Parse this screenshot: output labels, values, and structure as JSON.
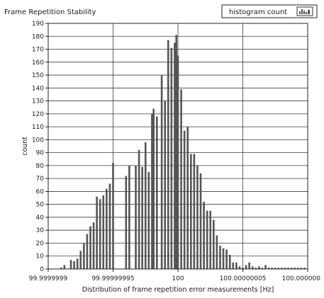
{
  "chart_data": {
    "type": "bar",
    "title": "Frame Repetition Stability",
    "xlabel": "Distribution of frame repetition error measurements [Hz]",
    "ylabel": "count",
    "ylim": [
      0,
      190
    ],
    "yticks": [
      0,
      10,
      20,
      30,
      40,
      50,
      60,
      70,
      80,
      90,
      100,
      110,
      120,
      130,
      140,
      150,
      160,
      170,
      180,
      190
    ],
    "xlim": [
      99.9999999,
      100.0000001
    ],
    "xtick_labels": [
      "99.9999999",
      "99.99999995",
      "100",
      "100.00000005",
      "100.000000"
    ],
    "grid": true,
    "legend_position": "top-right",
    "series": [
      {
        "name": "histogram count",
        "x": [
          99.99999991,
          99.9999999125,
          99.9999999175,
          99.99999992,
          99.9999999225,
          99.999999925,
          99.9999999275,
          99.99999993,
          99.9999999325,
          99.999999935,
          99.9999999375,
          99.99999994,
          99.9999999425,
          99.999999945,
          99.9999999475,
          99.99999995,
          99.99999996,
          99.9999999625,
          99.9999999675,
          99.99999997,
          99.9999999725,
          99.999999975,
          99.9999999775,
          99.99999998,
          99.99999998125,
          99.99999998375,
          99.9999999875,
          99.99999999,
          99.9999999925,
          99.999999995,
          99.9999999975,
          99.99999999875,
          100.0,
          100.0000000025,
          100.000000005,
          100.0000000075,
          100.00000001,
          100.0000000125,
          100.000000015,
          100.0000000175,
          100.00000002,
          100.0000000225,
          100.000000025,
          100.0000000275,
          100.00000003,
          100.0000000325,
          100.000000035,
          100.0000000375,
          100.00000004,
          100.0000000425,
          100.000000045,
          100.0000000475,
          100.00000005,
          100.0000000525,
          100.000000055,
          100.0000000575,
          100.00000006,
          100.0000000625,
          100.000000065,
          100.0000000675,
          100.00000007,
          100.0000000725,
          100.000000075,
          100.0000000775,
          100.00000008,
          100.0000000825,
          100.000000085,
          100.0000000875,
          100.00000009,
          100.0000000925,
          100.000000095,
          100.0000000975
        ],
        "values": [
          1,
          3,
          7,
          6,
          8,
          14,
          20,
          27,
          33,
          36,
          56,
          54,
          57,
          62,
          66,
          82,
          72,
          80,
          80,
          92,
          79,
          98,
          75,
          120,
          124,
          118,
          150,
          130,
          177,
          171,
          175,
          181,
          165,
          139,
          107,
          110,
          89,
          89,
          80,
          74,
          52,
          45,
          45,
          38,
          26,
          18,
          16,
          15,
          11,
          5,
          5,
          2,
          1,
          3,
          5,
          2,
          1,
          2,
          1,
          3,
          1,
          1,
          1,
          1,
          1,
          1,
          1,
          1,
          1,
          1,
          1,
          1
        ]
      }
    ]
  },
  "colors": {
    "bar": "#555555",
    "grid": "#3a3a3a",
    "text": "#1a1a1a"
  }
}
